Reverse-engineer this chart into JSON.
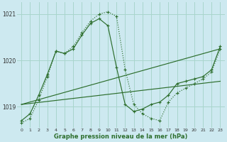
{
  "xlabel": "Graphe pression niveau de la mer (hPa)",
  "background_color": "#cde9f0",
  "grid_color": "#a8d5cc",
  "line_color": "#2d6e2d",
  "xlim": [
    -0.5,
    23.5
  ],
  "ylim": [
    1018.55,
    1021.25
  ],
  "yticks": [
    1019,
    1020,
    1021
  ],
  "xticks": [
    0,
    1,
    2,
    3,
    4,
    5,
    6,
    7,
    8,
    9,
    10,
    11,
    12,
    13,
    14,
    15,
    16,
    17,
    18,
    19,
    20,
    21,
    22,
    23
  ],
  "series_dotted": {
    "x": [
      0,
      1,
      2,
      3,
      4,
      5,
      6,
      7,
      8,
      9,
      10,
      11,
      12,
      13,
      14,
      15,
      16,
      17,
      18,
      19,
      20,
      21,
      22,
      23
    ],
    "y": [
      1018.65,
      1018.75,
      1019.15,
      1019.65,
      1020.2,
      1020.15,
      1020.3,
      1020.6,
      1020.85,
      1021.0,
      1021.05,
      1020.95,
      1019.8,
      1019.05,
      1018.85,
      1018.75,
      1018.7,
      1019.1,
      1019.3,
      1019.4,
      1019.5,
      1019.6,
      1019.75,
      1020.25
    ]
  },
  "series_solid": {
    "x": [
      0,
      1,
      2,
      3,
      4,
      5,
      6,
      7,
      8,
      9,
      10,
      11,
      12,
      13,
      14,
      15,
      16,
      17,
      18,
      19,
      20,
      21,
      22,
      23
    ],
    "y": [
      1018.7,
      1018.85,
      1019.25,
      1019.7,
      1020.2,
      1020.15,
      1020.25,
      1020.55,
      1020.8,
      1020.9,
      1020.75,
      1019.85,
      1019.05,
      1018.9,
      1018.95,
      1019.05,
      1019.1,
      1019.25,
      1019.5,
      1019.55,
      1019.6,
      1019.65,
      1019.8,
      1020.3
    ]
  },
  "line_lower": {
    "x": [
      0,
      23
    ],
    "y": [
      1019.05,
      1019.55
    ]
  },
  "line_upper": {
    "x": [
      0,
      23
    ],
    "y": [
      1019.05,
      1020.25
    ]
  }
}
